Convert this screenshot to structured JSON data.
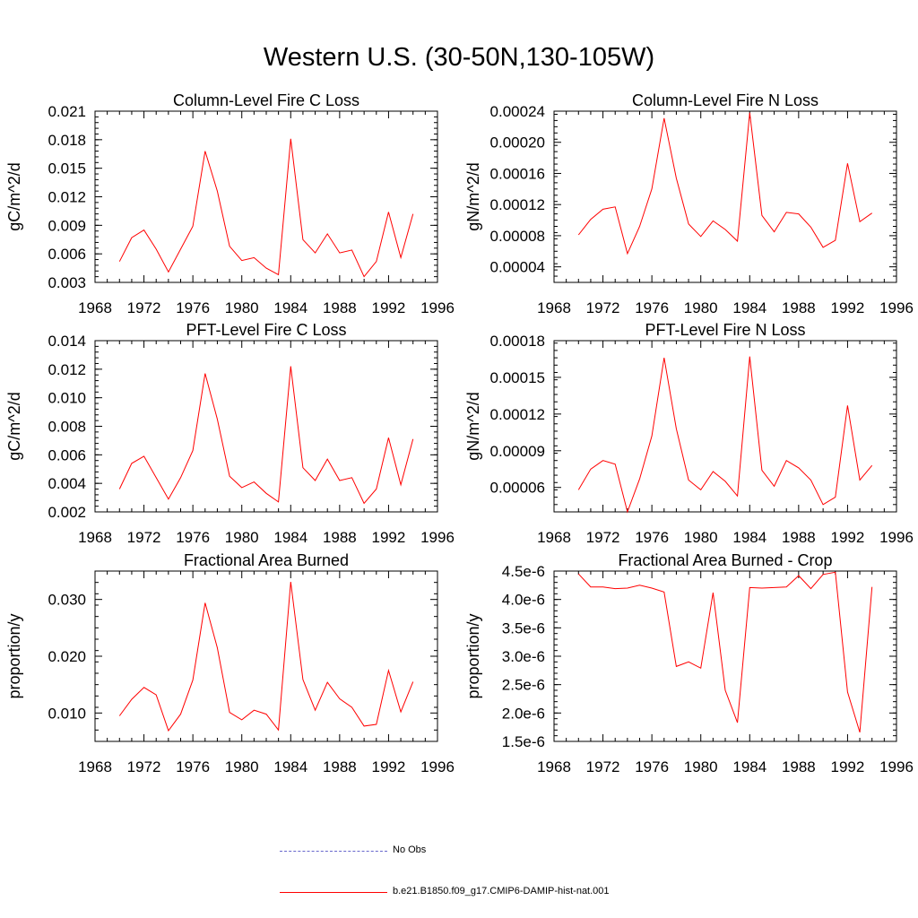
{
  "figure": {
    "title": "Western U.S. (30-50N,130-105W)"
  },
  "legend": [
    {
      "label": "No Obs",
      "color": "#6666cc",
      "dashed": true
    },
    {
      "label": "b.e21.B1850.f09_g17.CMIP6-DAMIP-hist-nat.001",
      "color": "#ff0000",
      "dashed": false
    }
  ],
  "chart_data": [
    {
      "type": "line",
      "title": "Column-Level Fire C Loss",
      "ylabel": "gC/m^2/d",
      "xlim": [
        1968,
        1996
      ],
      "xticks": [
        "1968",
        "1972",
        "1976",
        "1980",
        "1984",
        "1988",
        "1992",
        "1996"
      ],
      "ylim": [
        0.003,
        0.021
      ],
      "yticks": [
        "0.003",
        "0.006",
        "0.009",
        "0.012",
        "0.015",
        "0.018",
        "0.021"
      ],
      "x": [
        1970,
        1971,
        1972,
        1973,
        1974,
        1975,
        1976,
        1977,
        1978,
        1979,
        1980,
        1981,
        1982,
        1983,
        1984,
        1985,
        1986,
        1987,
        1988,
        1989,
        1990,
        1991,
        1992,
        1993,
        1994
      ],
      "series": [
        {
          "name": "b.e21.B1850.f09_g17.CMIP6-DAMIP-hist-nat.001",
          "color": "#ff0000",
          "values": [
            0.0052,
            0.0077,
            0.0085,
            0.0065,
            0.0041,
            0.0065,
            0.0089,
            0.0168,
            0.0126,
            0.0068,
            0.0053,
            0.0056,
            0.0045,
            0.0038,
            0.0181,
            0.0075,
            0.0061,
            0.0081,
            0.0061,
            0.0064,
            0.0036,
            0.0052,
            0.0104,
            0.0056,
            0.0102
          ]
        }
      ]
    },
    {
      "type": "line",
      "title": "Column-Level Fire N Loss",
      "ylabel": "gN/m^2/d",
      "xlim": [
        1968,
        1996
      ],
      "xticks": [
        "1968",
        "1972",
        "1976",
        "1980",
        "1984",
        "1988",
        "1992",
        "1996"
      ],
      "ylim": [
        2e-05,
        0.00024
      ],
      "yticks": [
        "0.00004",
        "0.00008",
        "0.00012",
        "0.00016",
        "0.00020",
        "0.00024"
      ],
      "x": [
        1970,
        1971,
        1972,
        1973,
        1974,
        1975,
        1976,
        1977,
        1978,
        1979,
        1980,
        1981,
        1982,
        1983,
        1984,
        1985,
        1986,
        1987,
        1988,
        1989,
        1990,
        1991,
        1992,
        1993,
        1994
      ],
      "series": [
        {
          "name": "b.e21.B1850.f09_g17.CMIP6-DAMIP-hist-nat.001",
          "color": "#ff0000",
          "values": [
            8.1e-05,
            0.000101,
            0.000114,
            0.000117,
            5.7e-05,
            9.2e-05,
            0.00014,
            0.000231,
            0.000154,
            9.5e-05,
            7.9e-05,
            9.9e-05,
            8.8e-05,
            7.3e-05,
            0.000238,
            0.000106,
            8.5e-05,
            0.00011,
            0.000108,
            9.1e-05,
            6.5e-05,
            7.4e-05,
            0.000173,
            9.8e-05,
            0.000109
          ]
        }
      ]
    },
    {
      "type": "line",
      "title": "PFT-Level Fire C Loss",
      "ylabel": "gC/m^2/d",
      "xlim": [
        1968,
        1996
      ],
      "xticks": [
        "1968",
        "1972",
        "1976",
        "1980",
        "1984",
        "1988",
        "1992",
        "1996"
      ],
      "ylim": [
        0.002,
        0.014
      ],
      "yticks": [
        "0.002",
        "0.004",
        "0.006",
        "0.008",
        "0.010",
        "0.012",
        "0.014"
      ],
      "x": [
        1970,
        1971,
        1972,
        1973,
        1974,
        1975,
        1976,
        1977,
        1978,
        1979,
        1980,
        1981,
        1982,
        1983,
        1984,
        1985,
        1986,
        1987,
        1988,
        1989,
        1990,
        1991,
        1992,
        1993,
        1994
      ],
      "series": [
        {
          "name": "b.e21.B1850.f09_g17.CMIP6-DAMIP-hist-nat.001",
          "color": "#ff0000",
          "values": [
            0.0036,
            0.0054,
            0.0059,
            0.0044,
            0.0029,
            0.0044,
            0.0063,
            0.0117,
            0.0085,
            0.0045,
            0.0037,
            0.0041,
            0.0033,
            0.0027,
            0.0122,
            0.0051,
            0.0042,
            0.0057,
            0.0042,
            0.0044,
            0.0026,
            0.0036,
            0.0072,
            0.0039,
            0.0071
          ]
        }
      ]
    },
    {
      "type": "line",
      "title": "PFT-Level Fire N Loss",
      "ylabel": "gN/m^2/d",
      "xlim": [
        1968,
        1996
      ],
      "xticks": [
        "1968",
        "1972",
        "1976",
        "1980",
        "1984",
        "1988",
        "1992",
        "1996"
      ],
      "ylim": [
        4e-05,
        0.00018
      ],
      "yticks": [
        "0.00006",
        "0.00009",
        "0.00012",
        "0.00015",
        "0.00018"
      ],
      "x": [
        1970,
        1971,
        1972,
        1973,
        1974,
        1975,
        1976,
        1977,
        1978,
        1979,
        1980,
        1981,
        1982,
        1983,
        1984,
        1985,
        1986,
        1987,
        1988,
        1989,
        1990,
        1991,
        1992,
        1993,
        1994
      ],
      "series": [
        {
          "name": "b.e21.B1850.f09_g17.CMIP6-DAMIP-hist-nat.001",
          "color": "#ff0000",
          "values": [
            5.8e-05,
            7.5e-05,
            8.2e-05,
            7.9e-05,
            4e-05,
            6.7e-05,
            0.000102,
            0.000166,
            0.000108,
            6.6e-05,
            5.8e-05,
            7.3e-05,
            6.5e-05,
            5.3e-05,
            0.000167,
            7.4e-05,
            6.1e-05,
            8.2e-05,
            7.6e-05,
            6.6e-05,
            4.6e-05,
            5.2e-05,
            0.000127,
            6.6e-05,
            7.8e-05
          ]
        }
      ]
    },
    {
      "type": "line",
      "title": "Fractional Area Burned",
      "ylabel": "proportion/y",
      "xlim": [
        1968,
        1996
      ],
      "xticks": [
        "1968",
        "1972",
        "1976",
        "1980",
        "1984",
        "1988",
        "1992",
        "1996"
      ],
      "ylim": [
        0.005,
        0.035
      ],
      "yticks": [
        "0.010",
        "0.020",
        "0.030"
      ],
      "x": [
        1970,
        1971,
        1972,
        1973,
        1974,
        1975,
        1976,
        1977,
        1978,
        1979,
        1980,
        1981,
        1982,
        1983,
        1984,
        1985,
        1986,
        1987,
        1988,
        1989,
        1990,
        1991,
        1992,
        1993,
        1994
      ],
      "series": [
        {
          "name": "b.e21.B1850.f09_g17.CMIP6-DAMIP-hist-nat.001",
          "color": "#ff0000",
          "values": [
            0.0095,
            0.0124,
            0.0145,
            0.0132,
            0.0069,
            0.0098,
            0.0158,
            0.0294,
            0.0215,
            0.0101,
            0.0088,
            0.0105,
            0.0098,
            0.007,
            0.0331,
            0.0159,
            0.0105,
            0.0154,
            0.0125,
            0.011,
            0.0077,
            0.008,
            0.0175,
            0.0102,
            0.0155
          ]
        }
      ]
    },
    {
      "type": "line",
      "title": "Fractional Area Burned - Crop",
      "ylabel": "proportion/y",
      "xlim": [
        1968,
        1996
      ],
      "xticks": [
        "1968",
        "1972",
        "1976",
        "1980",
        "1984",
        "1988",
        "1992",
        "1996"
      ],
      "ylim": [
        1.5e-06,
        4.5e-06
      ],
      "yticks": [
        "1.5e-6",
        "2.0e-6",
        "2.5e-6",
        "3.0e-6",
        "3.5e-6",
        "4.0e-6",
        "4.5e-6"
      ],
      "x": [
        1970,
        1971,
        1972,
        1973,
        1974,
        1975,
        1976,
        1977,
        1978,
        1979,
        1980,
        1981,
        1982,
        1983,
        1984,
        1985,
        1986,
        1987,
        1988,
        1989,
        1990,
        1991,
        1992,
        1993,
        1994
      ],
      "series": [
        {
          "name": "b.e21.B1850.f09_g17.CMIP6-DAMIP-hist-nat.001",
          "color": "#ff0000",
          "values": [
            4.45e-06,
            4.22e-06,
            4.22e-06,
            4.19e-06,
            4.2e-06,
            4.25e-06,
            4.2e-06,
            4.13e-06,
            2.82e-06,
            2.9e-06,
            2.79e-06,
            4.12e-06,
            2.4e-06,
            1.83e-06,
            4.21e-06,
            4.2e-06,
            4.21e-06,
            4.22e-06,
            4.42e-06,
            4.19e-06,
            4.44e-06,
            4.48e-06,
            2.37e-06,
            1.66e-06,
            4.22e-06
          ]
        }
      ]
    }
  ]
}
